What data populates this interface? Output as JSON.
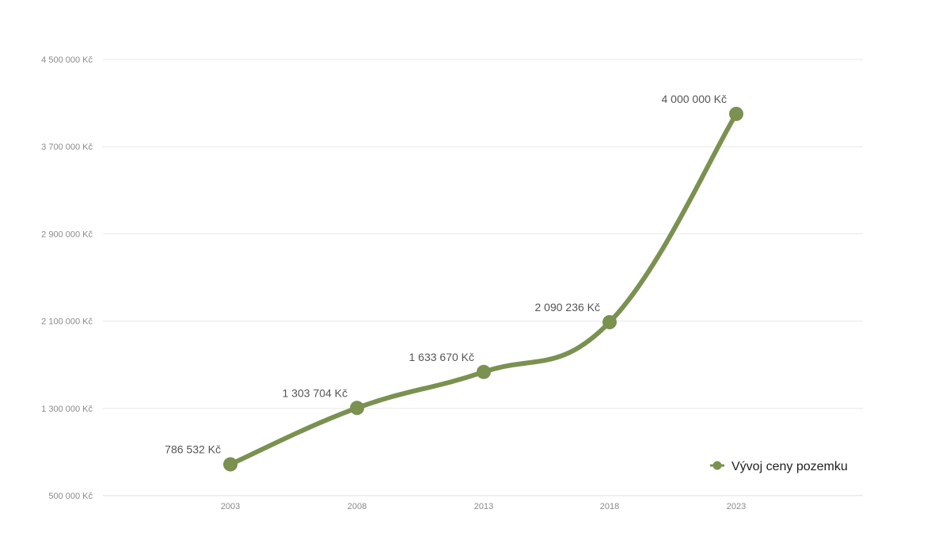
{
  "chart_data": {
    "type": "line",
    "title": "",
    "xlabel": "",
    "ylabel": "",
    "categories": [
      "2003",
      "2008",
      "2013",
      "2018",
      "2023"
    ],
    "series": [
      {
        "name": "Vývoj ceny pozemku",
        "values": [
          786532,
          1303704,
          1633670,
          2090236,
          4000000
        ],
        "data_labels": [
          "786 532 Kč",
          "1 303 704 Kč",
          "1 633 670 Kč",
          "2 090 236 Kč",
          "4 000 000 Kč"
        ],
        "color": "#7a9150"
      }
    ],
    "ylim": [
      500000,
      4500000
    ],
    "y_ticks": [
      500000,
      1300000,
      2100000,
      2900000,
      3700000,
      4500000
    ],
    "y_tick_labels": [
      "500 000 Kč",
      "1 300 000 Kč",
      "2 100 000 Kč",
      "2 900 000 Kč",
      "3 700 000 Kč",
      "4 500 000 Kč"
    ],
    "grid": true,
    "legend_position": "bottom-right",
    "smooth": true
  }
}
